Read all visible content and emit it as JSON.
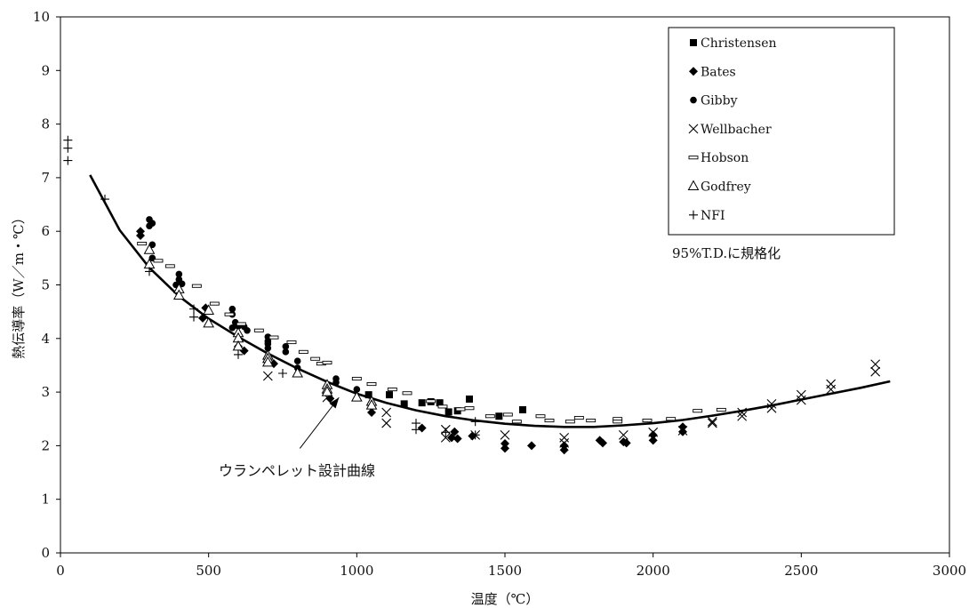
{
  "chart_data": {
    "type": "scatter",
    "title": "",
    "xlabel": "温度（℃）",
    "ylabel": "熱伝導率（W／m・℃）",
    "xlim": [
      0,
      3000
    ],
    "ylim": [
      0,
      10
    ],
    "x_ticks": [
      "0",
      "500",
      "1000",
      "1500",
      "2000",
      "2500",
      "3000"
    ],
    "y_ticks": [
      "0",
      "1",
      "2",
      "3",
      "4",
      "5",
      "6",
      "7",
      "8",
      "9",
      "10"
    ],
    "grid": false,
    "legend_placement": "top-right",
    "note": "95%T.D.に規格化",
    "annotation": "ウランペレット設計曲線",
    "series": [
      {
        "name": "Christensen",
        "marker": "square",
        "points": [
          [
            1040,
            2.95
          ],
          [
            1110,
            2.95
          ],
          [
            1160,
            2.78
          ],
          [
            1220,
            2.8
          ],
          [
            1250,
            2.82
          ],
          [
            1280,
            2.8
          ],
          [
            1310,
            2.63
          ],
          [
            1340,
            2.65
          ],
          [
            1380,
            2.87
          ],
          [
            1480,
            2.55
          ],
          [
            1560,
            2.67
          ]
        ]
      },
      {
        "name": "Bates",
        "marker": "diamond",
        "points": [
          [
            270,
            6.0
          ],
          [
            270,
            5.92
          ],
          [
            480,
            4.38
          ],
          [
            490,
            4.57
          ],
          [
            600,
            3.85
          ],
          [
            620,
            3.77
          ],
          [
            720,
            3.53
          ],
          [
            910,
            2.88
          ],
          [
            1050,
            2.62
          ],
          [
            1220,
            2.33
          ],
          [
            1320,
            2.15
          ],
          [
            1330,
            2.26
          ],
          [
            1340,
            2.13
          ],
          [
            1390,
            2.18
          ],
          [
            1500,
            2.04
          ],
          [
            1500,
            1.95
          ],
          [
            1590,
            2.0
          ],
          [
            1700,
            2.0
          ],
          [
            1700,
            1.92
          ],
          [
            1820,
            2.1
          ],
          [
            1830,
            2.05
          ],
          [
            1900,
            2.07
          ],
          [
            1910,
            2.05
          ],
          [
            2000,
            2.1
          ],
          [
            2000,
            2.2
          ],
          [
            2100,
            2.26
          ],
          [
            2100,
            2.35
          ]
        ]
      },
      {
        "name": "Gibby",
        "marker": "circle",
        "points": [
          [
            300,
            6.22
          ],
          [
            300,
            6.1
          ],
          [
            310,
            6.15
          ],
          [
            310,
            5.75
          ],
          [
            310,
            5.5
          ],
          [
            390,
            5.0
          ],
          [
            400,
            5.2
          ],
          [
            400,
            5.1
          ],
          [
            410,
            5.02
          ],
          [
            580,
            4.55
          ],
          [
            580,
            4.45
          ],
          [
            590,
            4.3
          ],
          [
            580,
            4.2
          ],
          [
            600,
            4.23
          ],
          [
            620,
            4.22
          ],
          [
            630,
            4.15
          ],
          [
            700,
            4.03
          ],
          [
            700,
            3.95
          ],
          [
            700,
            3.9
          ],
          [
            700,
            3.82
          ],
          [
            760,
            3.85
          ],
          [
            760,
            3.75
          ],
          [
            800,
            3.58
          ],
          [
            800,
            3.45
          ],
          [
            930,
            3.25
          ],
          [
            930,
            3.18
          ],
          [
            1000,
            3.05
          ]
        ]
      },
      {
        "name": "Wellbacher",
        "marker": "x",
        "points": [
          [
            700,
            3.3
          ],
          [
            900,
            2.9
          ],
          [
            1100,
            2.62
          ],
          [
            1100,
            2.42
          ],
          [
            1300,
            2.3
          ],
          [
            1300,
            2.15
          ],
          [
            1400,
            2.2
          ],
          [
            1500,
            2.2
          ],
          [
            1700,
            2.15
          ],
          [
            1700,
            2.05
          ],
          [
            1900,
            2.2
          ],
          [
            2000,
            2.25
          ],
          [
            2100,
            2.28
          ],
          [
            2200,
            2.45
          ],
          [
            2200,
            2.42
          ],
          [
            2300,
            2.55
          ],
          [
            2300,
            2.62
          ],
          [
            2400,
            2.7
          ],
          [
            2400,
            2.78
          ],
          [
            2500,
            2.95
          ],
          [
            2500,
            2.85
          ],
          [
            2600,
            3.15
          ],
          [
            2600,
            3.05
          ],
          [
            2750,
            3.52
          ],
          [
            2750,
            3.38
          ]
        ]
      },
      {
        "name": "Hobson",
        "marker": "dash",
        "points": [
          [
            275,
            5.77
          ],
          [
            330,
            5.45
          ],
          [
            370,
            5.35
          ],
          [
            460,
            4.98
          ],
          [
            520,
            4.65
          ],
          [
            570,
            4.45
          ],
          [
            610,
            4.27
          ],
          [
            670,
            4.15
          ],
          [
            720,
            4.02
          ],
          [
            780,
            3.93
          ],
          [
            820,
            3.75
          ],
          [
            860,
            3.62
          ],
          [
            880,
            3.53
          ],
          [
            900,
            3.55
          ],
          [
            1000,
            3.25
          ],
          [
            1050,
            3.15
          ],
          [
            1120,
            3.05
          ],
          [
            1170,
            2.98
          ],
          [
            1250,
            2.83
          ],
          [
            1290,
            2.73
          ],
          [
            1350,
            2.68
          ],
          [
            1380,
            2.7
          ],
          [
            1450,
            2.55
          ],
          [
            1510,
            2.58
          ],
          [
            1540,
            2.45
          ],
          [
            1620,
            2.55
          ],
          [
            1650,
            2.47
          ],
          [
            1720,
            2.45
          ],
          [
            1750,
            2.52
          ],
          [
            1790,
            2.47
          ],
          [
            1880,
            2.5
          ],
          [
            1880,
            2.45
          ],
          [
            1980,
            2.47
          ],
          [
            2060,
            2.5
          ],
          [
            2150,
            2.65
          ],
          [
            2230,
            2.67
          ]
        ]
      },
      {
        "name": "Godfrey",
        "marker": "triangle",
        "points": [
          [
            300,
            5.65
          ],
          [
            300,
            5.38
          ],
          [
            400,
            4.92
          ],
          [
            400,
            4.8
          ],
          [
            500,
            4.52
          ],
          [
            500,
            4.28
          ],
          [
            600,
            4.1
          ],
          [
            600,
            4.0
          ],
          [
            600,
            3.85
          ],
          [
            700,
            3.68
          ],
          [
            700,
            3.62
          ],
          [
            700,
            3.55
          ],
          [
            800,
            3.35
          ],
          [
            900,
            3.13
          ],
          [
            900,
            3.05
          ],
          [
            900,
            3.0
          ],
          [
            1000,
            2.9
          ],
          [
            1050,
            2.82
          ],
          [
            1050,
            2.75
          ]
        ]
      },
      {
        "name": "NFI",
        "marker": "plus",
        "points": [
          [
            25,
            7.7
          ],
          [
            25,
            7.55
          ],
          [
            25,
            7.32
          ],
          [
            150,
            6.6
          ],
          [
            300,
            5.25
          ],
          [
            450,
            4.55
          ],
          [
            450,
            4.4
          ],
          [
            600,
            3.7
          ],
          [
            750,
            3.35
          ],
          [
            1200,
            2.42
          ],
          [
            1200,
            2.3
          ],
          [
            1300,
            2.25
          ],
          [
            1400,
            2.45
          ],
          [
            1400,
            2.2
          ]
        ]
      }
    ],
    "curve": {
      "name": "ウランペレット設計曲線",
      "points": [
        [
          100,
          7.05
        ],
        [
          200,
          6.02
        ],
        [
          300,
          5.32
        ],
        [
          400,
          4.79
        ],
        [
          500,
          4.37
        ],
        [
          600,
          4.03
        ],
        [
          700,
          3.72
        ],
        [
          800,
          3.44
        ],
        [
          900,
          3.19
        ],
        [
          1000,
          2.97
        ],
        [
          1100,
          2.8
        ],
        [
          1200,
          2.66
        ],
        [
          1300,
          2.55
        ],
        [
          1400,
          2.47
        ],
        [
          1500,
          2.41
        ],
        [
          1600,
          2.37
        ],
        [
          1700,
          2.35
        ],
        [
          1800,
          2.35
        ],
        [
          1900,
          2.38
        ],
        [
          2000,
          2.42
        ],
        [
          2100,
          2.48
        ],
        [
          2200,
          2.56
        ],
        [
          2300,
          2.65
        ],
        [
          2400,
          2.75
        ],
        [
          2500,
          2.86
        ],
        [
          2600,
          2.97
        ],
        [
          2700,
          3.08
        ],
        [
          2800,
          3.2
        ]
      ]
    }
  }
}
